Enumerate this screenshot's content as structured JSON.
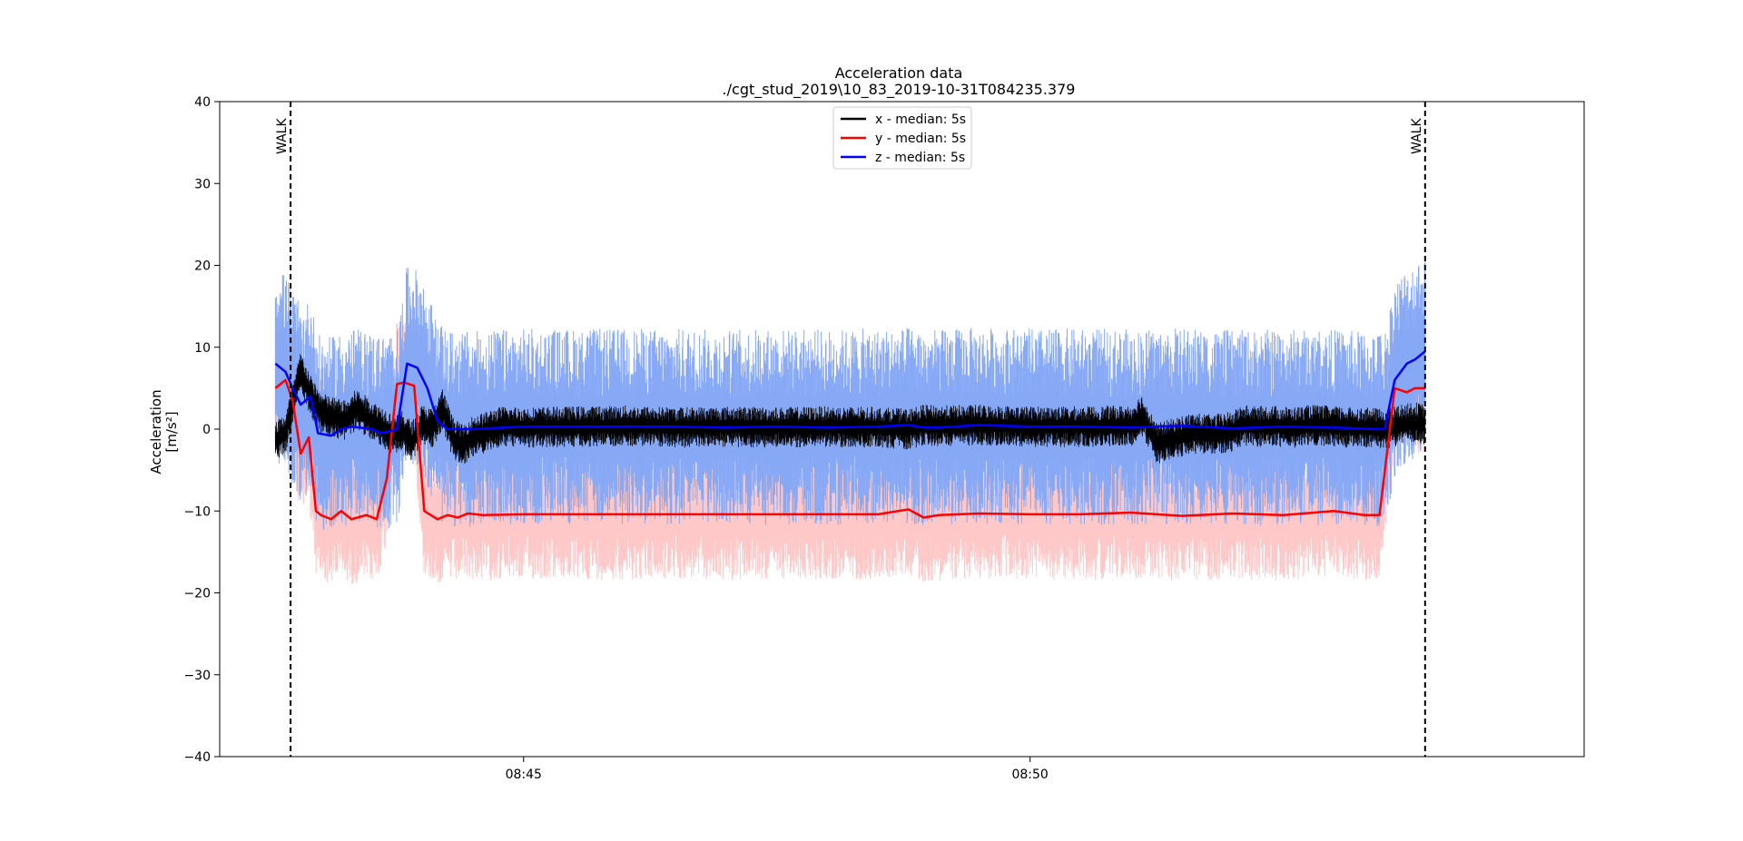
{
  "chart_data": {
    "type": "line",
    "title": "Acceleration data",
    "subtitle": "./cgt_stud_2019\\10_83_2019-10-31T084235.379",
    "ylabel_line1": "Acceleration",
    "ylabel_line2": "[m/s²]",
    "ylim": [
      -40,
      40
    ],
    "y_ticks": [
      -40,
      -30,
      -20,
      -10,
      0,
      10,
      20,
      30,
      40
    ],
    "x_range_minutes": [
      522.0,
      535.47
    ],
    "x_ticks": [
      {
        "minute": 525,
        "label": "08:45"
      },
      {
        "minute": 530,
        "label": "08:50"
      }
    ],
    "grid": false,
    "legend_placement": "top-center",
    "markers": [
      {
        "minute": 522.7,
        "label": "WALK"
      },
      {
        "minute": 533.9,
        "label": "WALK"
      }
    ],
    "series": [
      {
        "name": "x - median: 5s",
        "color": "#000000",
        "x": [
          522.55,
          522.65,
          522.72,
          522.8,
          522.9,
          523.0,
          523.1,
          523.25,
          523.35,
          523.5,
          523.6,
          523.7,
          523.8,
          523.9,
          524.0,
          524.1,
          524.2,
          524.3,
          524.4,
          524.5,
          524.6,
          524.7,
          524.8,
          525.0,
          525.5,
          526.0,
          526.5,
          527.0,
          527.5,
          528.0,
          528.5,
          528.8,
          528.95,
          529.1,
          529.5,
          530.0,
          530.5,
          531.0,
          531.1,
          531.25,
          531.4,
          531.6,
          531.8,
          532.0,
          532.1,
          532.2,
          532.4,
          532.6,
          532.8,
          533.0,
          533.2,
          533.4,
          533.5,
          533.65,
          533.8,
          533.9
        ],
        "y": [
          -1.5,
          -0.5,
          3.0,
          7.0,
          4.0,
          2.0,
          1.5,
          1.0,
          2.5,
          1.0,
          0.3,
          -0.5,
          -0.3,
          -1.5,
          0.5,
          0.0,
          2.5,
          -1.0,
          -2.0,
          -0.8,
          -0.5,
          0.0,
          0.3,
          0.2,
          0.3,
          0.4,
          0.2,
          0.3,
          0.2,
          0.3,
          0.2,
          0.0,
          0.5,
          0.4,
          0.5,
          0.3,
          0.3,
          0.4,
          1.8,
          -1.8,
          -1.2,
          -0.5,
          -0.7,
          -0.3,
          0.5,
          0.3,
          0.4,
          0.2,
          0.5,
          0.3,
          0.2,
          0.1,
          0.0,
          0.5,
          0.8,
          0.6
        ],
        "noise": [
          -2.5,
          2.5
        ]
      },
      {
        "name": "y - median: 5s",
        "color": "#ff0000",
        "x": [
          522.55,
          522.65,
          522.72,
          522.8,
          522.88,
          522.95,
          523.0,
          523.1,
          523.2,
          523.3,
          523.45,
          523.55,
          523.65,
          523.75,
          523.82,
          523.92,
          524.02,
          524.15,
          524.25,
          524.35,
          524.45,
          524.6,
          525.0,
          525.5,
          526.0,
          526.5,
          527.0,
          527.5,
          528.0,
          528.5,
          528.8,
          528.95,
          529.1,
          529.5,
          530.0,
          530.5,
          531.0,
          531.5,
          532.0,
          532.5,
          533.0,
          533.3,
          533.45,
          533.6,
          533.72,
          533.8,
          533.9
        ],
        "y": [
          5.0,
          6.0,
          3.5,
          -3.0,
          -1.0,
          -10.0,
          -10.5,
          -11.0,
          -10.0,
          -11.0,
          -10.5,
          -11.0,
          -6.0,
          5.5,
          5.7,
          5.3,
          -10.0,
          -11.0,
          -10.5,
          -10.8,
          -10.3,
          -10.5,
          -10.4,
          -10.4,
          -10.4,
          -10.4,
          -10.4,
          -10.4,
          -10.4,
          -10.4,
          -9.8,
          -10.8,
          -10.5,
          -10.3,
          -10.4,
          -10.4,
          -10.2,
          -10.6,
          -10.3,
          -10.5,
          -10.0,
          -10.5,
          -10.5,
          5.0,
          4.5,
          5.0,
          5.0
        ],
        "noise": [
          -8,
          8
        ]
      },
      {
        "name": "z - median: 5s",
        "color": "#0000ff",
        "x": [
          522.55,
          522.65,
          522.72,
          522.8,
          522.9,
          522.97,
          523.1,
          523.2,
          523.3,
          523.5,
          523.6,
          523.75,
          523.85,
          523.95,
          524.05,
          524.15,
          524.25,
          524.5,
          525.0,
          525.5,
          526.0,
          526.5,
          527.0,
          527.5,
          528.0,
          528.5,
          528.8,
          528.95,
          529.1,
          529.5,
          530.0,
          530.5,
          531.0,
          531.5,
          532.0,
          532.5,
          533.0,
          533.4,
          533.5,
          533.6,
          533.72,
          533.8,
          533.9
        ],
        "y": [
          8.0,
          7.0,
          5.0,
          3.0,
          4.0,
          -0.5,
          -0.8,
          0.0,
          0.3,
          0.0,
          -0.5,
          0.0,
          8.0,
          7.5,
          5.0,
          1.0,
          0.0,
          0.0,
          0.3,
          0.3,
          0.3,
          0.3,
          0.2,
          0.3,
          0.2,
          0.3,
          0.5,
          0.2,
          0.2,
          0.5,
          0.3,
          0.3,
          0.2,
          0.4,
          0.1,
          0.3,
          0.2,
          0.0,
          0.0,
          6.0,
          8.0,
          8.5,
          9.5
        ],
        "noise": [
          -12,
          12
        ]
      }
    ]
  }
}
